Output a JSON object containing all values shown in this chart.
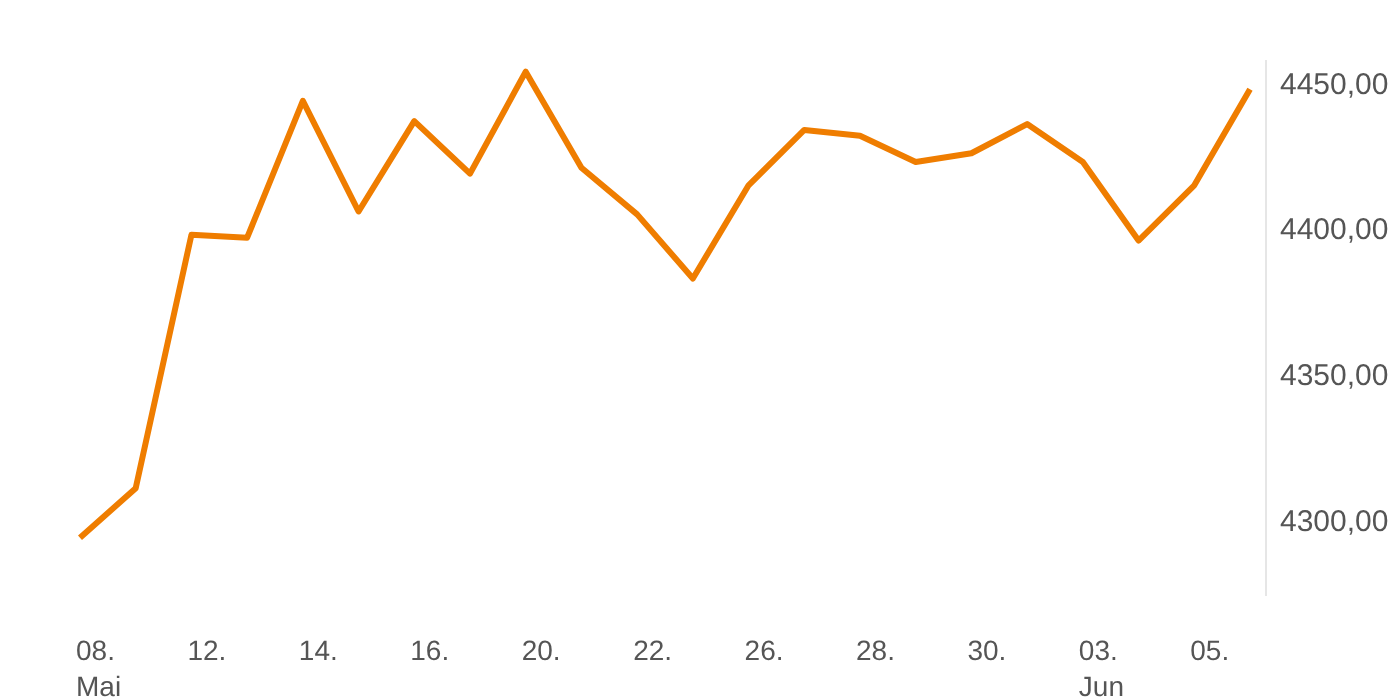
{
  "chart_data": {
    "type": "line",
    "categories": [
      "08.\nMai",
      null,
      "12.",
      null,
      "14.",
      null,
      "16.",
      null,
      "20.",
      null,
      "22.",
      null,
      "26.",
      null,
      "28.",
      null,
      "30.",
      null,
      "03.\nJun",
      null,
      "05.",
      null
    ],
    "series": [
      {
        "color": "#ef7d00",
        "values": [
          4294,
          4311,
          4398,
          4397,
          4444,
          4406,
          4437,
          4419,
          4454,
          4421,
          4405,
          4383,
          4415,
          4434,
          4432,
          4423,
          4426,
          4436,
          4423,
          4396,
          4415,
          4448
        ]
      }
    ],
    "ylim": [
      4274,
      4458
    ],
    "yticks": [
      {
        "value": 4300,
        "label": "4300,00"
      },
      {
        "value": 4350,
        "label": "4350,00"
      },
      {
        "value": 4400,
        "label": "4400,00"
      },
      {
        "value": 4450,
        "label": "4450,00"
      }
    ],
    "grid": false,
    "marker": "none",
    "line_style": "solid"
  }
}
